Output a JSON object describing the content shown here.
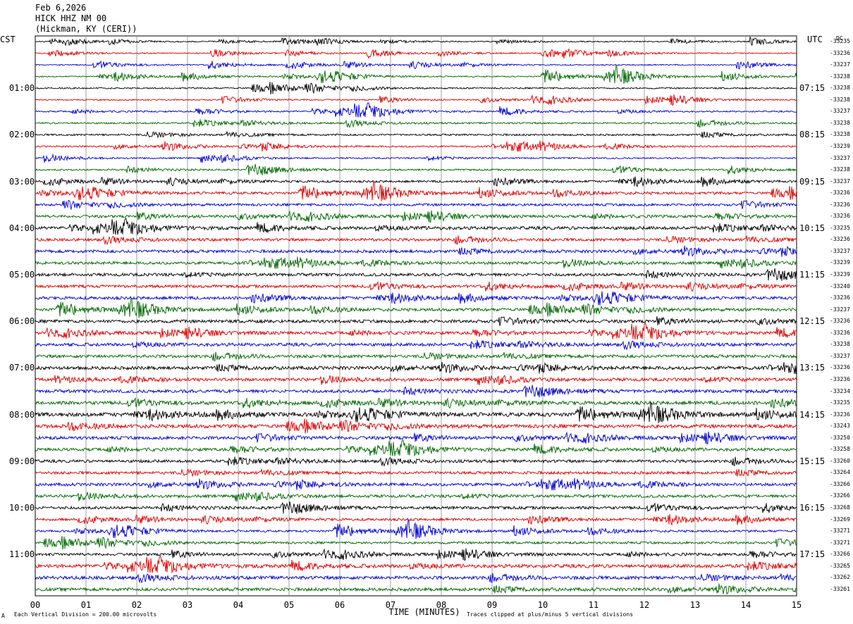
{
  "header": {
    "date": "Feb 6,2026",
    "station": "HICK HHZ NM 00",
    "location": "(Hickman, KY (CERI))"
  },
  "axis": {
    "left_label": "CST",
    "right_label": "UTC",
    "dc_label": "DC",
    "xlabel": "TIME (MINUTES)",
    "ticks": [
      "00",
      "01",
      "02",
      "03",
      "04",
      "05",
      "06",
      "07",
      "08",
      "09",
      "10",
      "11",
      "12",
      "13",
      "14",
      "15"
    ]
  },
  "footer": {
    "left_mark": "A",
    "scale_note": "Each Vertical Division =  200.00 microvolts",
    "clip_note": "Traces clipped at plus/minus 5 vertical divisions"
  },
  "chart_data": {
    "type": "line",
    "xlabel": "TIME (MINUTES)",
    "xlim": [
      0,
      15
    ],
    "trace_colors": [
      "#000000",
      "#dd0000",
      "#0000cc",
      "#006600"
    ],
    "cst_hours": [
      "01:00",
      "02:00",
      "03:00",
      "04:00",
      "05:00",
      "06:00",
      "07:00",
      "08:00",
      "09:00",
      "10:00",
      "11:00"
    ],
    "utc_hours": [
      "07:15",
      "08:15",
      "09:15",
      "10:15",
      "11:15",
      "12:15",
      "13:15",
      "14:15",
      "15:15",
      "16:15",
      "17:15"
    ],
    "hour_row_index": [
      4,
      8,
      12,
      16,
      20,
      24,
      28,
      32,
      36,
      40,
      44
    ],
    "dc_offsets": [
      "-33235",
      "-33236",
      "-33237",
      "-33238",
      "-33238",
      "-33238",
      "-33237",
      "-33238",
      "-33238",
      "-33239",
      "-33237",
      "-33238",
      "-33237",
      "-33236",
      "-33236",
      "-33236",
      "-33235",
      "-33236",
      "-33237",
      "-33239",
      "-33239",
      "-33240",
      "-33236",
      "-33237",
      "-33236",
      "-33236",
      "-33238",
      "-33237",
      "-33236",
      "-33236",
      "-33234",
      "-33235",
      "-33236",
      "-33243",
      "-33250",
      "-33258",
      "-33260",
      "-33264",
      "-33266",
      "-33266",
      "-33268",
      "-33269",
      "-33271",
      "-33271",
      "-33266",
      "-33265",
      "-33262",
      "-33261"
    ],
    "activity": [
      0.15,
      0.12,
      0.15,
      0.18,
      0.25,
      0.2,
      0.25,
      0.3,
      0.35,
      0.3,
      0.25,
      0.3,
      0.45,
      0.6,
      0.55,
      0.6,
      0.75,
      0.65,
      0.7,
      0.65,
      0.7,
      0.65,
      0.7,
      0.7,
      0.75,
      0.7,
      0.75,
      0.7,
      0.8,
      0.75,
      0.75,
      0.85,
      1.0,
      0.9,
      0.75,
      0.7,
      0.65,
      0.65,
      0.7,
      0.65,
      0.65,
      0.55,
      0.45,
      0.5,
      0.6,
      0.85,
      0.8,
      0.75
    ]
  }
}
